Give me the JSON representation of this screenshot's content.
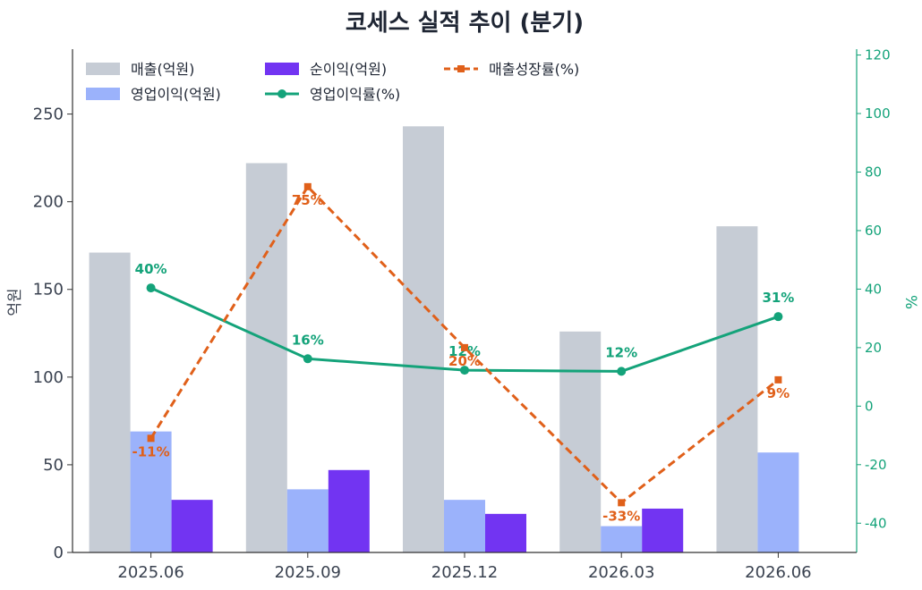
{
  "chart_data": {
    "type": "bar",
    "title": "코세스 실적 추이 (분기)",
    "categories": [
      "2025.06",
      "2025.09",
      "2025.12",
      "2026.03",
      "2026.06"
    ],
    "ylabel": "억원",
    "ylabel_right": "%",
    "ylim": [
      0,
      287
    ],
    "ylim_right": [
      -50,
      122
    ],
    "yticks": [
      0,
      50,
      100,
      150,
      200,
      250
    ],
    "yticks_right": [
      -40,
      -20,
      0,
      20,
      40,
      60,
      80,
      100,
      120
    ],
    "legend_position": "top-left",
    "bar_series": [
      {
        "name": "매출(억원)",
        "color": "#c6ccd5",
        "values": [
          171,
          222,
          243,
          126,
          186
        ]
      },
      {
        "name": "영업이익(억원)",
        "color": "#9bb2fb",
        "values": [
          69,
          36,
          30,
          15,
          57
        ]
      },
      {
        "name": "순이익(억원)",
        "color": "#7234f2",
        "values": [
          30,
          47,
          22,
          25,
          null
        ]
      }
    ],
    "line_series": [
      {
        "name": "영업이익률(%)",
        "color": "#14a37a",
        "style": "solid",
        "marker": "circle",
        "values": [
          40.4,
          16.2,
          12.3,
          11.9,
          30.6
        ],
        "labels": [
          "40%",
          "16%",
          "12%",
          "12%",
          "31%"
        ]
      },
      {
        "name": "매출성장률(%)",
        "color": "#e0601a",
        "style": "dashed",
        "marker": "square",
        "values": [
          -11,
          75,
          20,
          -33,
          9
        ],
        "labels": [
          "-11%",
          "75%",
          "20%",
          "-33%",
          "9%"
        ]
      }
    ]
  }
}
